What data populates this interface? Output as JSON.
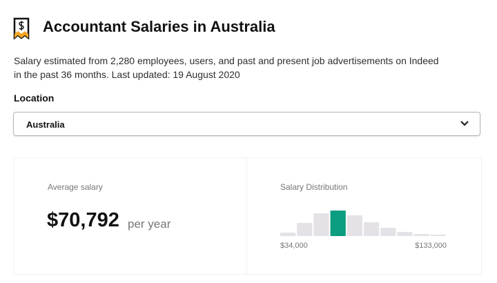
{
  "header": {
    "title": "Accountant Salaries in Australia",
    "description": "Salary estimated from 2,280 employees, users, and past and present job advertisements on Indeed in the past 36 months. Last updated: 19 August 2020"
  },
  "location": {
    "label": "Location",
    "value": "Australia"
  },
  "average": {
    "label": "Average salary",
    "value": "$70,792",
    "unit": "per year"
  },
  "distribution": {
    "label": "Salary Distribution",
    "values": [
      5,
      19,
      33,
      37,
      30,
      20,
      12,
      6,
      3,
      2
    ],
    "colors": [
      "#e4e2e6",
      "#e4e2e6",
      "#e4e2e6",
      "#0a9d7f",
      "#e4e2e6",
      "#e4e2e6",
      "#e4e2e6",
      "#e4e2e6",
      "#e4e2e6",
      "#e4e2e6"
    ],
    "min_label": "$34,000",
    "max_label": "$133,000"
  }
}
